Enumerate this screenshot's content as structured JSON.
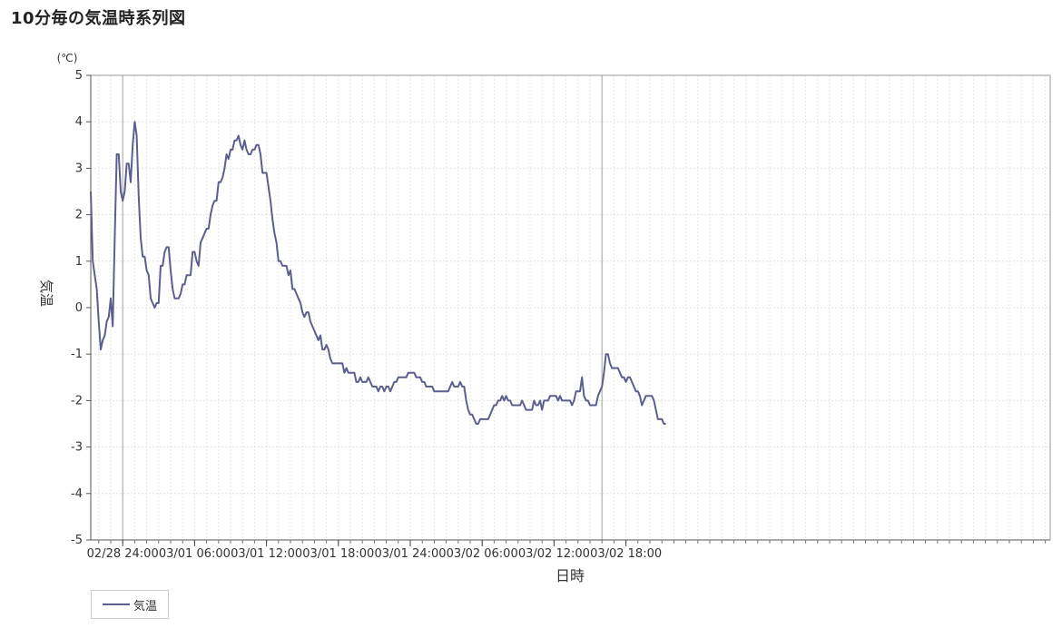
{
  "page": {
    "title": "10分毎の気温時系列図"
  },
  "chart_data": {
    "type": "line",
    "title": "10分毎の気温時系列図",
    "xlabel": "日時",
    "ylabel": "気温",
    "yunit": "(℃)",
    "ylim": [
      -5,
      5
    ],
    "yticks": [
      5,
      4,
      3,
      2,
      1,
      0,
      -1,
      -2,
      -3,
      -4,
      -5
    ],
    "xtick_labels": [
      "02/28 24:00",
      "03/01 06:00",
      "03/01 12:00",
      "03/01 18:00",
      "03/01 24:00",
      "03/02 06:00",
      "03/02 12:00",
      "03/02 18:00"
    ],
    "x_start": "02/28 21:20",
    "x_end": "03/03 00:20",
    "x_step": "10分",
    "grid": true,
    "legend_position": "bottom-left",
    "series": [
      {
        "name": "気温",
        "color": "#5b5f8e",
        "values": [
          2.5,
          1.0,
          0.7,
          0.4,
          -0.3,
          -0.9,
          -0.7,
          -0.6,
          -0.3,
          -0.2,
          0.2,
          -0.4,
          1.5,
          3.3,
          3.3,
          2.5,
          2.3,
          2.5,
          3.1,
          3.1,
          2.7,
          3.5,
          4.0,
          3.7,
          2.4,
          1.5,
          1.1,
          1.1,
          0.8,
          0.7,
          0.2,
          0.1,
          0.0,
          0.1,
          0.1,
          0.9,
          0.9,
          1.2,
          1.3,
          1.3,
          0.8,
          0.4,
          0.2,
          0.2,
          0.2,
          0.3,
          0.5,
          0.5,
          0.7,
          0.7,
          0.7,
          1.2,
          1.2,
          1.0,
          0.9,
          1.4,
          1.5,
          1.6,
          1.7,
          1.7,
          2.0,
          2.2,
          2.3,
          2.3,
          2.7,
          2.7,
          2.8,
          3.0,
          3.3,
          3.2,
          3.4,
          3.4,
          3.6,
          3.6,
          3.7,
          3.5,
          3.4,
          3.6,
          3.4,
          3.3,
          3.3,
          3.4,
          3.4,
          3.5,
          3.5,
          3.3,
          2.9,
          2.9,
          2.9,
          2.6,
          2.3,
          1.9,
          1.6,
          1.4,
          1.0,
          1.0,
          0.9,
          0.9,
          0.9,
          0.7,
          0.8,
          0.4,
          0.4,
          0.3,
          0.2,
          0.1,
          -0.1,
          -0.2,
          -0.1,
          -0.1,
          -0.3,
          -0.4,
          -0.5,
          -0.6,
          -0.7,
          -0.6,
          -0.9,
          -0.9,
          -0.8,
          -0.9,
          -1.1,
          -1.2,
          -1.2,
          -1.2,
          -1.2,
          -1.2,
          -1.2,
          -1.4,
          -1.3,
          -1.4,
          -1.4,
          -1.4,
          -1.4,
          -1.6,
          -1.6,
          -1.5,
          -1.6,
          -1.6,
          -1.6,
          -1.5,
          -1.6,
          -1.7,
          -1.7,
          -1.7,
          -1.8,
          -1.7,
          -1.7,
          -1.8,
          -1.7,
          -1.7,
          -1.8,
          -1.7,
          -1.6,
          -1.6,
          -1.5,
          -1.5,
          -1.5,
          -1.5,
          -1.5,
          -1.4,
          -1.4,
          -1.4,
          -1.4,
          -1.5,
          -1.5,
          -1.5,
          -1.6,
          -1.6,
          -1.7,
          -1.7,
          -1.7,
          -1.7,
          -1.8,
          -1.8,
          -1.8,
          -1.8,
          -1.8,
          -1.8,
          -1.8,
          -1.8,
          -1.7,
          -1.6,
          -1.7,
          -1.7,
          -1.7,
          -1.6,
          -1.7,
          -1.7,
          -2.0,
          -2.2,
          -2.3,
          -2.3,
          -2.4,
          -2.5,
          -2.5,
          -2.4,
          -2.4,
          -2.4,
          -2.4,
          -2.4,
          -2.3,
          -2.2,
          -2.1,
          -2.1,
          -2.0,
          -2.0,
          -1.9,
          -2.0,
          -1.9,
          -2.0,
          -2.0,
          -2.1,
          -2.1,
          -2.1,
          -2.1,
          -2.1,
          -2.0,
          -2.1,
          -2.2,
          -2.2,
          -2.2,
          -2.2,
          -2.0,
          -2.1,
          -2.1,
          -2.0,
          -2.2,
          -2.0,
          -2.0,
          -2.0,
          -1.9,
          -1.9,
          -1.9,
          -1.9,
          -2.0,
          -1.9,
          -2.0,
          -2.0,
          -2.0,
          -2.0,
          -2.0,
          -2.1,
          -2.0,
          -1.8,
          -1.8,
          -1.8,
          -1.5,
          -1.9,
          -2.0,
          -2.0,
          -2.1,
          -2.1,
          -2.1,
          -2.1,
          -1.9,
          -1.8,
          -1.7,
          -1.4,
          -1.0,
          -1.0,
          -1.2,
          -1.3,
          -1.3,
          -1.3,
          -1.3,
          -1.4,
          -1.5,
          -1.5,
          -1.6,
          -1.5,
          -1.5,
          -1.6,
          -1.7,
          -1.8,
          -1.8,
          -1.9,
          -2.1,
          -2.0,
          -1.9,
          -1.9,
          -1.9,
          -1.9,
          -2.0,
          -2.2,
          -2.4,
          -2.4,
          -2.4,
          -2.5,
          -2.5
        ]
      }
    ]
  }
}
